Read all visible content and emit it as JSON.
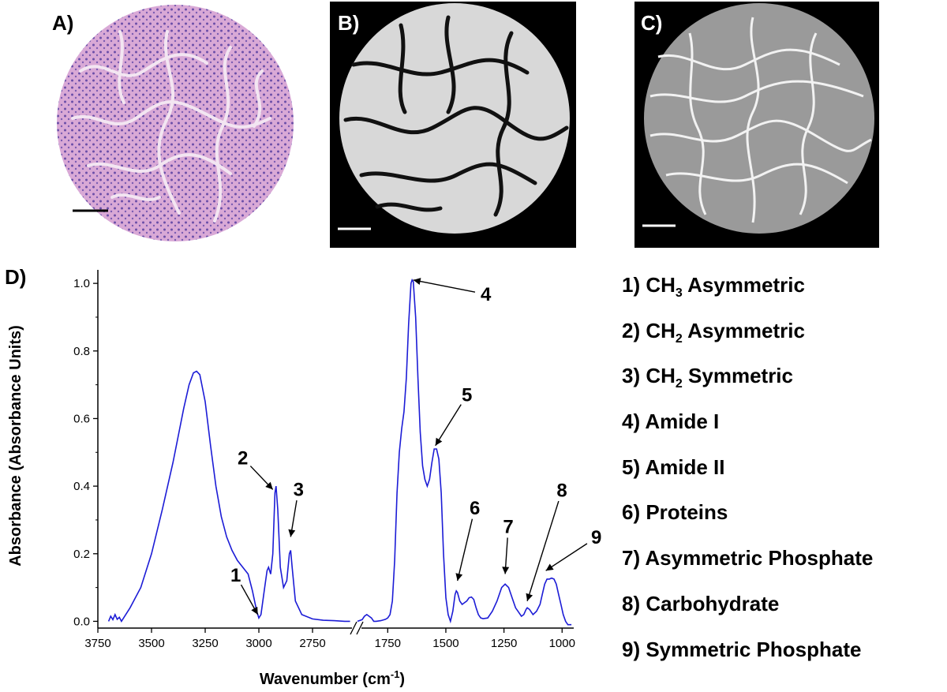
{
  "panels": {
    "a": {
      "label": "A)"
    },
    "b": {
      "label": "B)"
    },
    "c": {
      "label": "C)"
    },
    "d": {
      "label": "D)"
    }
  },
  "colors": {
    "spectrum": "#1c1cd6",
    "he_stain_bg": "#e9c6e6",
    "he_nuclei": "#6b4fa8",
    "ir_bg": "#000000",
    "ir_tissue": "#e6e6e6"
  },
  "chart_data": {
    "type": "line",
    "title": "",
    "xlabel": "Wavenumber (cm",
    "xlabel_sup": "-1",
    "xlabel_end": ")",
    "ylabel": "Absorbance (Absorbance Units)",
    "x_axis_reversed": true,
    "x_axis_break": true,
    "x_ranges": [
      [
        3750,
        2570
      ],
      [
        1880,
        950
      ]
    ],
    "ylim": [
      -0.02,
      1.04
    ],
    "x_ticks_left": [
      3750,
      3500,
      3250,
      3000,
      2750
    ],
    "x_ticks_right": [
      1750,
      1500,
      1250,
      1000
    ],
    "x_tick_labels": [
      "3750",
      "3500",
      "3250",
      "3000",
      "2750",
      "1750",
      "1500",
      "1250",
      "1000"
    ],
    "y_ticks": [
      0.0,
      0.2,
      0.4,
      0.6,
      0.8,
      1.0
    ],
    "y_tick_labels": [
      "0.0",
      "0.2",
      "0.4",
      "0.6",
      "0.8",
      "1.0"
    ],
    "grid": false,
    "series": [
      {
        "segments": [
          [
            [
              3700,
              0.0
            ],
            [
              3690,
              0.015
            ],
            [
              3680,
              0.005
            ],
            [
              3670,
              0.02
            ],
            [
              3660,
              0.006
            ],
            [
              3650,
              0.012
            ],
            [
              3640,
              0.0
            ],
            [
              3600,
              0.04
            ],
            [
              3550,
              0.1
            ],
            [
              3500,
              0.2
            ],
            [
              3450,
              0.33
            ],
            [
              3400,
              0.47
            ],
            [
              3375,
              0.55
            ],
            [
              3350,
              0.63
            ],
            [
              3325,
              0.7
            ],
            [
              3305,
              0.735
            ],
            [
              3290,
              0.74
            ],
            [
              3275,
              0.73
            ],
            [
              3250,
              0.65
            ],
            [
              3225,
              0.52
            ],
            [
              3200,
              0.4
            ],
            [
              3175,
              0.31
            ],
            [
              3150,
              0.25
            ],
            [
              3125,
              0.21
            ],
            [
              3100,
              0.18
            ],
            [
              3075,
              0.16
            ],
            [
              3050,
              0.14
            ],
            [
              3030,
              0.09
            ],
            [
              3010,
              0.03
            ],
            [
              3000,
              0.01
            ],
            [
              2990,
              0.02
            ],
            [
              2975,
              0.09
            ],
            [
              2962,
              0.15
            ],
            [
              2955,
              0.16
            ],
            [
              2945,
              0.14
            ],
            [
              2935,
              0.2
            ],
            [
              2925,
              0.38
            ],
            [
              2920,
              0.4
            ],
            [
              2912,
              0.33
            ],
            [
              2900,
              0.16
            ],
            [
              2885,
              0.1
            ],
            [
              2870,
              0.12
            ],
            [
              2858,
              0.2
            ],
            [
              2852,
              0.21
            ],
            [
              2845,
              0.16
            ],
            [
              2830,
              0.06
            ],
            [
              2800,
              0.02
            ],
            [
              2750,
              0.007
            ],
            [
              2700,
              0.003
            ],
            [
              2650,
              0.002
            ],
            [
              2600,
              0.0
            ],
            [
              2575,
              0.0
            ]
          ],
          [
            [
              1880,
              0.0
            ],
            [
              1860,
              0.005
            ],
            [
              1850,
              0.015
            ],
            [
              1840,
              0.02
            ],
            [
              1830,
              0.015
            ],
            [
              1820,
              0.01
            ],
            [
              1810,
              0.0
            ],
            [
              1800,
              0.0
            ],
            [
              1780,
              0.002
            ],
            [
              1760,
              0.006
            ],
            [
              1750,
              0.01
            ],
            [
              1740,
              0.02
            ],
            [
              1730,
              0.06
            ],
            [
              1720,
              0.18
            ],
            [
              1710,
              0.38
            ],
            [
              1700,
              0.5
            ],
            [
              1690,
              0.57
            ],
            [
              1680,
              0.62
            ],
            [
              1670,
              0.72
            ],
            [
              1660,
              0.88
            ],
            [
              1650,
              1.0
            ],
            [
              1645,
              1.01
            ],
            [
              1640,
              1.005
            ],
            [
              1630,
              0.9
            ],
            [
              1620,
              0.72
            ],
            [
              1610,
              0.56
            ],
            [
              1600,
              0.46
            ],
            [
              1590,
              0.42
            ],
            [
              1580,
              0.4
            ],
            [
              1570,
              0.42
            ],
            [
              1560,
              0.47
            ],
            [
              1550,
              0.51
            ],
            [
              1540,
              0.51
            ],
            [
              1530,
              0.48
            ],
            [
              1520,
              0.38
            ],
            [
              1510,
              0.2
            ],
            [
              1500,
              0.07
            ],
            [
              1490,
              0.02
            ],
            [
              1480,
              0.0
            ],
            [
              1470,
              0.03
            ],
            [
              1460,
              0.08
            ],
            [
              1455,
              0.09
            ],
            [
              1450,
              0.085
            ],
            [
              1440,
              0.06
            ],
            [
              1430,
              0.05
            ],
            [
              1420,
              0.055
            ],
            [
              1410,
              0.06
            ],
            [
              1400,
              0.07
            ],
            [
              1390,
              0.072
            ],
            [
              1380,
              0.065
            ],
            [
              1370,
              0.04
            ],
            [
              1360,
              0.02
            ],
            [
              1350,
              0.01
            ],
            [
              1340,
              0.008
            ],
            [
              1320,
              0.01
            ],
            [
              1300,
              0.03
            ],
            [
              1280,
              0.06
            ],
            [
              1260,
              0.1
            ],
            [
              1245,
              0.11
            ],
            [
              1230,
              0.1
            ],
            [
              1215,
              0.07
            ],
            [
              1200,
              0.04
            ],
            [
              1190,
              0.03
            ],
            [
              1175,
              0.015
            ],
            [
              1165,
              0.02
            ],
            [
              1155,
              0.035
            ],
            [
              1150,
              0.04
            ],
            [
              1140,
              0.035
            ],
            [
              1125,
              0.02
            ],
            [
              1110,
              0.03
            ],
            [
              1095,
              0.05
            ],
            [
              1085,
              0.08
            ],
            [
              1075,
              0.11
            ],
            [
              1065,
              0.125
            ],
            [
              1055,
              0.125
            ],
            [
              1045,
              0.128
            ],
            [
              1035,
              0.125
            ],
            [
              1025,
              0.11
            ],
            [
              1015,
              0.08
            ],
            [
              1005,
              0.05
            ],
            [
              995,
              0.02
            ],
            [
              985,
              0.0
            ],
            [
              975,
              -0.01
            ],
            [
              960,
              -0.01
            ]
          ]
        ]
      }
    ],
    "annotations": [
      {
        "text": "1",
        "target_x": 3005,
        "target_y": 0.02
      },
      {
        "text": "2",
        "target_x": 2935,
        "target_y": 0.39
      },
      {
        "text": "3",
        "target_x": 2852,
        "target_y": 0.25
      },
      {
        "text": "4",
        "target_x": 1640,
        "target_y": 1.01
      },
      {
        "text": "5",
        "target_x": 1545,
        "target_y": 0.52
      },
      {
        "text": "6",
        "target_x": 1450,
        "target_y": 0.12
      },
      {
        "text": "7",
        "target_x": 1245,
        "target_y": 0.14
      },
      {
        "text": "8",
        "target_x": 1150,
        "target_y": 0.06
      },
      {
        "text": "9",
        "target_x": 1070,
        "target_y": 0.15
      }
    ]
  },
  "legend": {
    "items": [
      {
        "num": "1) CH",
        "sub": "3",
        "rest": " Asymmetric"
      },
      {
        "num": "2) CH",
        "sub": "2",
        "rest": " Asymmetric"
      },
      {
        "num": "3) CH",
        "sub": "2",
        "rest": " Symmetric"
      },
      {
        "num": "4) Amide I",
        "sub": "",
        "rest": ""
      },
      {
        "num": "5) Amide II",
        "sub": "",
        "rest": ""
      },
      {
        "num": "6) Proteins",
        "sub": "",
        "rest": ""
      },
      {
        "num": "7) Asymmetric Phosphate",
        "sub": "",
        "rest": ""
      },
      {
        "num": "8) Carbohydrate",
        "sub": "",
        "rest": ""
      },
      {
        "num": "9) Symmetric Phosphate",
        "sub": "",
        "rest": ""
      }
    ]
  }
}
